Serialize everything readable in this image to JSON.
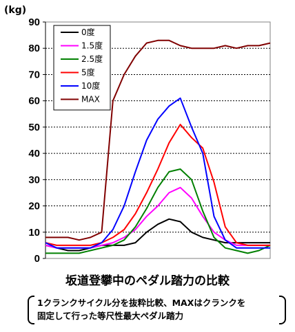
{
  "chart_data": {
    "type": "line",
    "title": "坂道登攀中のペダル踏力の比較",
    "unit_label": "(kg)",
    "ylim": [
      0,
      90
    ],
    "yticks": [
      "0",
      "10",
      "20",
      "30",
      "40",
      "50",
      "60",
      "70",
      "80",
      "90"
    ],
    "grid": "dashed horizontal",
    "legend_position": "top-left",
    "x": [
      0,
      5,
      10,
      15,
      20,
      25,
      30,
      35,
      40,
      45,
      50,
      55,
      60,
      65,
      70,
      75,
      80,
      85,
      90,
      95,
      100
    ],
    "series": [
      {
        "name": "0度",
        "color": "#000000",
        "values": [
          5,
          4,
          3,
          3,
          4,
          5,
          5,
          5,
          6,
          10,
          13,
          15,
          14,
          10,
          8,
          7,
          6,
          6,
          6,
          6,
          6
        ]
      },
      {
        "name": "1.5度",
        "color": "#ff00ff",
        "values": [
          5,
          4,
          4,
          4,
          4,
          5,
          6,
          8,
          11,
          16,
          20,
          25,
          27,
          23,
          16,
          10,
          7,
          5,
          5,
          5,
          5
        ]
      },
      {
        "name": "2.5度",
        "color": "#008000",
        "values": [
          2,
          2,
          2,
          2,
          3,
          4,
          5,
          7,
          12,
          19,
          27,
          33,
          34,
          30,
          18,
          8,
          4,
          3,
          2,
          3,
          5
        ]
      },
      {
        "name": "5度",
        "color": "#ff0000",
        "values": [
          6,
          5,
          5,
          5,
          5,
          6,
          8,
          11,
          17,
          25,
          34,
          44,
          51,
          46,
          42,
          29,
          12,
          6,
          5,
          5,
          5
        ]
      },
      {
        "name": "10度",
        "color": "#0000ff",
        "values": [
          6,
          4,
          4,
          4,
          4,
          6,
          11,
          20,
          33,
          45,
          53,
          58,
          61,
          50,
          40,
          16,
          7,
          4,
          4,
          4,
          4
        ]
      },
      {
        "name": "MAX",
        "color": "#800000",
        "values": [
          8,
          8,
          8,
          7,
          8,
          10,
          60,
          70,
          77,
          82,
          83,
          83,
          81,
          80,
          80,
          80,
          81,
          80,
          81,
          81,
          82
        ]
      }
    ]
  },
  "note": {
    "line1": "1クランクサイクル分を抜粋比較、MAXはクランクを",
    "line2": "固定して行った等尺性最大ペダル踏力"
  }
}
